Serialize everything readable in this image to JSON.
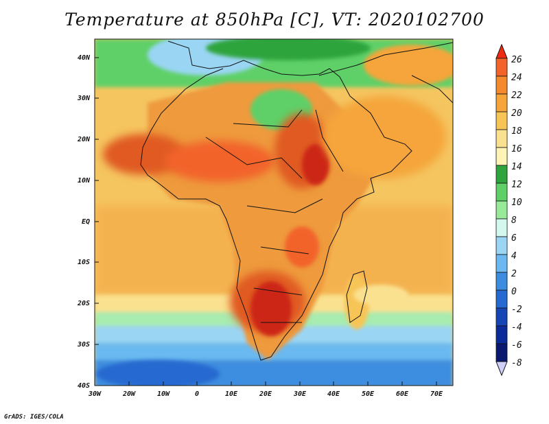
{
  "title": "Temperature at 850hPa [C], VT: 2020102700",
  "credit": "GrADS: IGES/COLA",
  "map": {
    "lon_range": [
      -30,
      75
    ],
    "lat_range": [
      -40,
      45
    ],
    "lon_ticks": [
      "30W",
      "20W",
      "10W",
      "0",
      "10E",
      "20E",
      "30E",
      "40E",
      "50E",
      "60E",
      "70E"
    ],
    "lat_ticks": [
      "40N",
      "30N",
      "20N",
      "10N",
      "EQ",
      "10S",
      "20S",
      "30S",
      "40S"
    ],
    "ocean_color": "#f5c560",
    "land_base_color": "#ee9a3c",
    "regions": [
      {
        "name": "Mediterranean cool",
        "color": "#3cb85a"
      },
      {
        "name": "Sahel warm",
        "color": "#e05a20"
      },
      {
        "name": "Southern Africa warm",
        "color": "#cc2818"
      },
      {
        "name": "Southern Ocean cold",
        "color": "#3a8cdc"
      }
    ]
  },
  "colorbar": {
    "levels": [
      "26",
      "24",
      "22",
      "20",
      "18",
      "16",
      "14",
      "12",
      "10",
      "8",
      "6",
      "4",
      "2",
      "0",
      "-2",
      "-4",
      "-6",
      "-8"
    ],
    "colors": [
      "#ee2a14",
      "#f2642a",
      "#f4892e",
      "#f5a53a",
      "#f7c456",
      "#fae190",
      "#fdf4b6",
      "#2fa43c",
      "#5ed067",
      "#98ea98",
      "#d4f8ee",
      "#9ad6f4",
      "#6bb9f0",
      "#3c8de0",
      "#2669d0",
      "#1645b6",
      "#0c2b9a",
      "#0a1870",
      "#cfcff8"
    ]
  }
}
